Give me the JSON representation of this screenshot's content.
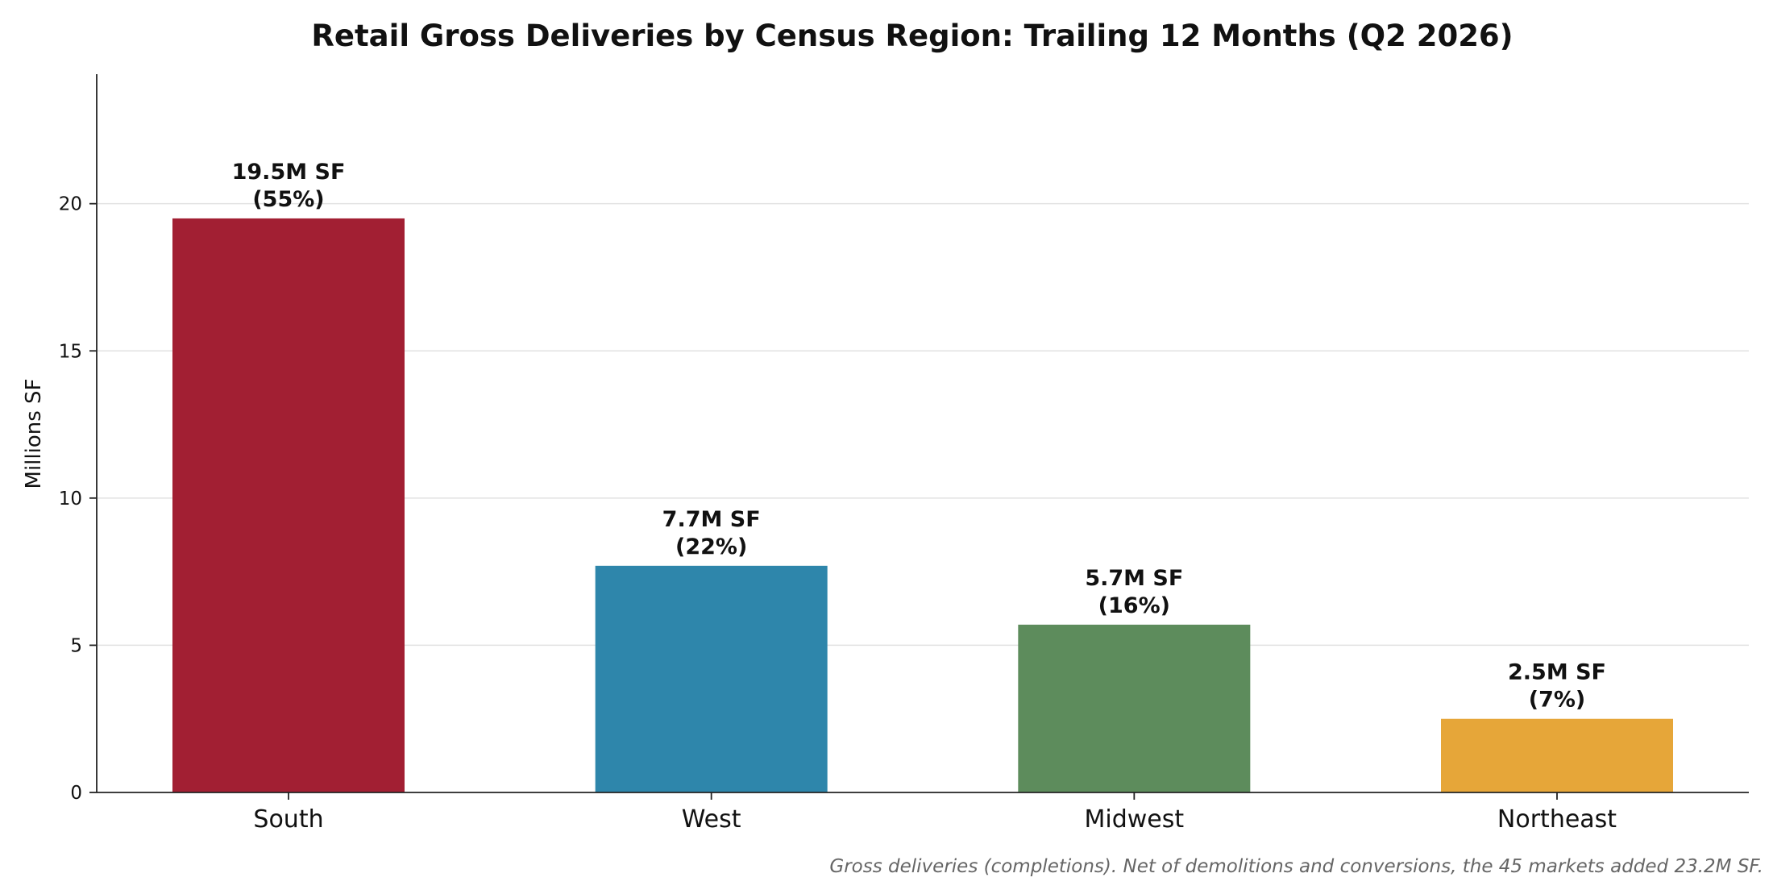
{
  "chart_data": {
    "type": "bar",
    "title": "Retail Gross Deliveries by Census Region: Trailing 12 Months (Q2 2026)",
    "xlabel": "",
    "ylabel": "Millions SF",
    "categories": [
      "South",
      "West",
      "Midwest",
      "Northeast"
    ],
    "values": [
      19.5,
      7.7,
      5.7,
      2.5
    ],
    "data_labels": [
      [
        "19.5M SF",
        "(55%)"
      ],
      [
        "7.7M SF",
        "(22%)"
      ],
      [
        "5.7M SF",
        "(16%)"
      ],
      [
        "2.5M SF",
        "(7%)"
      ]
    ],
    "colors": [
      "#a21f33",
      "#2e86ab",
      "#5d8c5c",
      "#e6a639"
    ],
    "ylim": [
      0,
      24.4
    ],
    "yticks": [
      0,
      5,
      10,
      15,
      20
    ],
    "grid": true,
    "legend": "none",
    "footnote": "Gross deliveries (completions). Net of demolitions and conversions, the 45 markets added 23.2M SF."
  }
}
